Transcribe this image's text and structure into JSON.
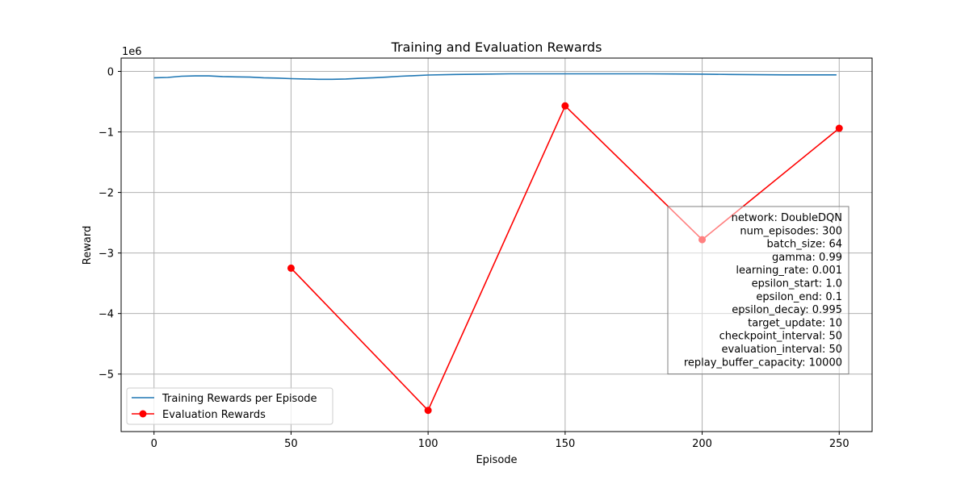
{
  "chart_data": {
    "type": "line",
    "title": "Training and Evaluation Rewards",
    "xlabel": "Episode",
    "ylabel": "Reward",
    "y_offset_label": "1e6",
    "xlim": [
      -12,
      262
    ],
    "ylim": [
      -5.95,
      0.22
    ],
    "x_ticks": [
      0,
      50,
      100,
      150,
      200,
      250
    ],
    "x_tick_labels": [
      "0",
      "50",
      "100",
      "150",
      "200",
      "250"
    ],
    "y_ticks": [
      0,
      -1,
      -2,
      -3,
      -4,
      -5
    ],
    "y_tick_labels": [
      "0",
      "−1",
      "−2",
      "−3",
      "−4",
      "−5"
    ],
    "grid": true,
    "legend_placement": "lower-left",
    "series": [
      {
        "name": "Training Rewards per Episode",
        "color": "#1f77b4",
        "marker": "none",
        "x": [
          0,
          5,
          10,
          15,
          20,
          25,
          30,
          35,
          40,
          45,
          50,
          55,
          60,
          65,
          70,
          75,
          80,
          85,
          90,
          95,
          100,
          110,
          120,
          130,
          140,
          150,
          160,
          170,
          180,
          190,
          200,
          210,
          220,
          230,
          240,
          249
        ],
        "y": [
          -0.105,
          -0.1,
          -0.08,
          -0.075,
          -0.075,
          -0.085,
          -0.09,
          -0.095,
          -0.105,
          -0.11,
          -0.12,
          -0.125,
          -0.13,
          -0.13,
          -0.125,
          -0.115,
          -0.105,
          -0.095,
          -0.08,
          -0.07,
          -0.06,
          -0.05,
          -0.045,
          -0.04,
          -0.04,
          -0.04,
          -0.04,
          -0.04,
          -0.04,
          -0.042,
          -0.045,
          -0.05,
          -0.055,
          -0.057,
          -0.057,
          -0.057
        ]
      },
      {
        "name": "Evaluation Rewards",
        "color": "#ff0000",
        "marker": "circle",
        "x": [
          50,
          100,
          150,
          200,
          250
        ],
        "y": [
          -3.25,
          -5.6,
          -0.57,
          -2.78,
          -0.94
        ]
      }
    ]
  },
  "params_box": {
    "lines": [
      "network: DoubleDQN",
      "num_episodes: 300",
      "batch_size: 64",
      "gamma: 0.99",
      "learning_rate: 0.001",
      "epsilon_start: 1.0",
      "epsilon_end: 0.1",
      "epsilon_decay: 0.995",
      "target_update: 10",
      "checkpoint_interval: 50",
      "evaluation_interval: 50",
      "replay_buffer_capacity: 10000"
    ]
  }
}
